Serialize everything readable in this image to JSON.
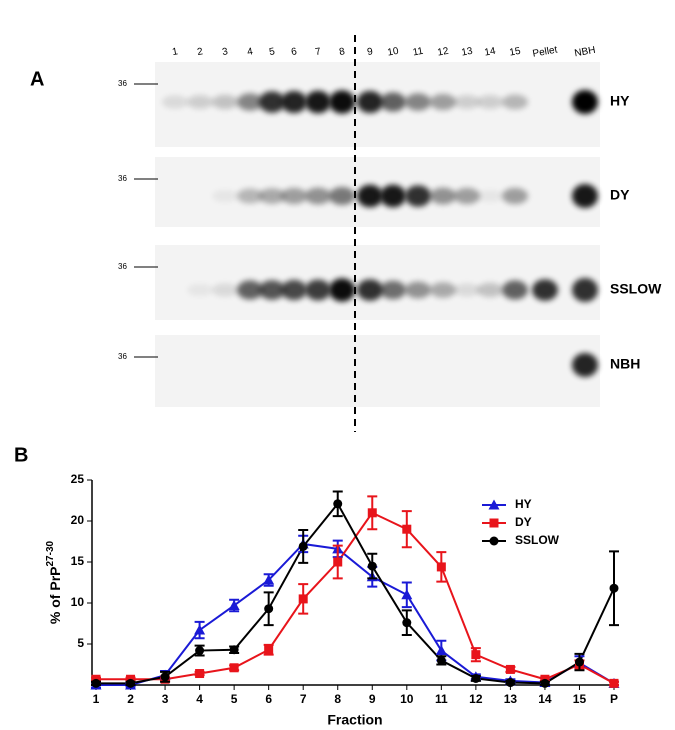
{
  "panel_a": {
    "label": "A",
    "lanes": [
      "1",
      "2",
      "3",
      "4",
      "5",
      "6",
      "7",
      "8",
      "9",
      "10",
      "11",
      "12",
      "13",
      "14",
      "15",
      "Pellet",
      "NBH"
    ],
    "rows": [
      {
        "label": "HY",
        "marker": "36"
      },
      {
        "label": "DY",
        "marker": "36"
      },
      {
        "label": "SSLOW",
        "marker": "36"
      },
      {
        "label": "NBH",
        "marker": "36"
      }
    ]
  },
  "chart_data": {
    "type": "line",
    "panel_label": "B",
    "ylabel": "% of PrP",
    "ylabel_sup": "27-30",
    "xlabel": "Fraction",
    "categories": [
      "1",
      "2",
      "3",
      "4",
      "5",
      "6",
      "7",
      "8",
      "9",
      "10",
      "11",
      "12",
      "13",
      "14",
      "15",
      "P"
    ],
    "ylim": [
      0,
      25
    ],
    "yticks": [
      5,
      10,
      15,
      20,
      25
    ],
    "series": [
      {
        "name": "HY",
        "color": "#1a1ad6",
        "marker": "triangle",
        "values": [
          0,
          0,
          1.2,
          6.7,
          9.7,
          12.8,
          17.2,
          16.6,
          13.2,
          11,
          4.2,
          1,
          0.5,
          0.3,
          2.7,
          0.2
        ],
        "errors": [
          0.3,
          0.2,
          0.5,
          1,
          0.7,
          0.7,
          1,
          1,
          1.2,
          1.5,
          1.2,
          0.3,
          0.2,
          0.2,
          0.8,
          0.2
        ]
      },
      {
        "name": "DY",
        "color": "#e8141b",
        "marker": "square",
        "values": [
          0.7,
          0.7,
          0.7,
          1.4,
          2.1,
          4.3,
          10.5,
          15,
          21,
          19,
          14.4,
          3.7,
          1.9,
          0.7,
          2.5,
          0.2
        ],
        "errors": [
          0.2,
          0.2,
          0.2,
          0.2,
          0.3,
          0.6,
          1.8,
          2,
          2,
          2.2,
          1.8,
          0.8,
          0.3,
          0.2,
          0.5,
          0.2
        ]
      },
      {
        "name": "SSLOW",
        "color": "#000000",
        "marker": "circle",
        "values": [
          0.2,
          0.2,
          1,
          4.2,
          4.3,
          9.3,
          16.9,
          22.1,
          14.5,
          7.6,
          3,
          0.8,
          0.3,
          0.2,
          2.8,
          11.8
        ],
        "errors": [
          0.2,
          0.2,
          0.6,
          0.6,
          0.4,
          2,
          2,
          1.5,
          1.5,
          1.5,
          0.5,
          0.3,
          0.2,
          0.2,
          1,
          4.5
        ]
      }
    ]
  }
}
